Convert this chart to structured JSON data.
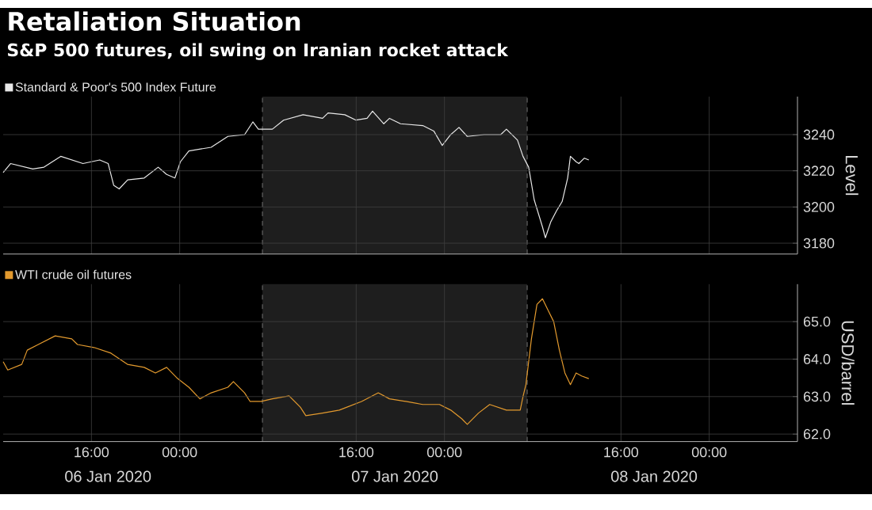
{
  "chart_data": [
    {
      "type": "line",
      "title": "Retaliation Situation",
      "subtitle": "S&P 500 futures, oil swing on Iranian rocket attack",
      "ylabel": "Level",
      "series": [
        {
          "name": "Standard & Poor's 500 Index Future",
          "color": "#e8e8e8",
          "x": [
            "2020-01-06T08:00",
            "2020-01-06T08:40",
            "2020-01-06T10:41",
            "2020-01-06T11:42",
            "2020-01-06T13:13",
            "2020-01-06T15:14",
            "2020-01-06T16:45",
            "2020-01-06T17:31",
            "2020-01-06T18:01",
            "2020-01-06T18:31",
            "2020-01-06T19:17",
            "2020-01-06T20:47",
            "2020-01-06T22:03",
            "2020-01-06T22:49",
            "2020-01-06T23:34",
            "2020-01-07T00:04",
            "2020-01-07T00:50",
            "2020-01-07T02:51",
            "2020-01-07T04:22",
            "2020-01-07T05:53",
            "2020-01-07T06:38",
            "2020-01-07T07:08",
            "2020-01-07T08:24",
            "2020-01-07T09:25",
            "2020-01-07T11:11",
            "2020-01-07T12:57",
            "2020-01-07T13:27",
            "2020-01-07T14:58",
            "2020-01-07T15:59",
            "2020-01-07T16:59",
            "2020-01-07T17:29",
            "2020-01-07T18:30",
            "2020-01-07T19:01",
            "2020-01-07T20:01",
            "2020-01-07T22:02",
            "2020-01-07T23:02",
            "2020-01-07T23:48",
            "2020-01-08T00:34",
            "2020-01-08T01:19",
            "2020-01-08T02:04",
            "2020-01-08T03:35",
            "2020-01-08T05:06",
            "2020-01-08T05:37",
            "2020-01-08T06:37",
            "2020-01-08T07:07",
            "2020-01-08T07:38",
            "2020-01-08T08:08",
            "2020-01-08T08:53",
            "2020-01-08T09:09",
            "2020-01-08T09:39",
            "2020-01-08T10:10",
            "2020-01-08T10:40",
            "2020-01-08T11:10",
            "2020-01-08T11:25",
            "2020-01-08T11:56",
            "2020-01-08T12:11",
            "2020-01-08T12:41",
            "2020-01-08T13:05"
          ],
          "values": [
            3219,
            3224,
            3221,
            3222,
            3228,
            3224,
            3226,
            3224,
            3212,
            3210,
            3215,
            3216,
            3222,
            3218,
            3216,
            3225,
            3231,
            3233,
            3239,
            3240,
            3247,
            3243,
            3243,
            3248,
            3251,
            3249,
            3252,
            3251,
            3248,
            3249,
            3253,
            3246,
            3249,
            3246,
            3245,
            3242,
            3234,
            3240,
            3244,
            3239,
            3240,
            3240,
            3243,
            3237,
            3228,
            3222,
            3204,
            3189,
            3183,
            3192,
            3198,
            3203,
            3216,
            3228,
            3225,
            3224,
            3227,
            3226
          ]
        }
      ],
      "xlim": [
        "2020-01-06T08:00",
        "2020-01-09T08:00"
      ],
      "xticks": [
        {
          "value": "2020-01-06T16:00",
          "label": null
        },
        {
          "value": "2020-01-07T00:00",
          "label": null
        },
        {
          "value": "2020-01-07T16:00",
          "label": null
        },
        {
          "value": "2020-01-08T00:00",
          "label": null
        },
        {
          "value": "2020-01-08T16:00",
          "label": null
        },
        {
          "value": "2020-01-09T00:00",
          "label": null
        }
      ],
      "ylim": [
        3174,
        3261
      ],
      "yticks": [
        3180,
        3200,
        3220,
        3240
      ],
      "tick_labels": "y",
      "bands": [
        {
          "axis": "x",
          "from": "2020-01-07T07:30",
          "to": "2020-01-08T07:30",
          "color": "#1e1e1e"
        }
      ],
      "ref_lines": [
        {
          "axis": "x",
          "value": "2020-01-07T07:30",
          "line_style": "dashed"
        },
        {
          "axis": "x",
          "value": "2020-01-08T07:30",
          "line_style": "dashed"
        }
      ],
      "grid": true,
      "legend": "top left"
    },
    {
      "type": "line",
      "ylabel": "USD/barrel",
      "series": [
        {
          "name": "WTI crude oil futures",
          "color": "#e39a2e",
          "x": [
            "2020-01-06T08:00",
            "2020-01-06T08:25",
            "2020-01-06T09:41",
            "2020-01-06T10:11",
            "2020-01-06T11:11",
            "2020-01-06T12:43",
            "2020-01-06T14:13",
            "2020-01-06T14:44",
            "2020-01-06T16:14",
            "2020-01-06T17:46",
            "2020-01-06T19:16",
            "2020-01-06T20:47",
            "2020-01-06T21:48",
            "2020-01-06T22:49",
            "2020-01-06T23:49",
            "2020-01-07T00:50",
            "2020-01-07T01:50",
            "2020-01-07T02:51",
            "2020-01-07T04:22",
            "2020-01-07T04:52",
            "2020-01-07T05:53",
            "2020-01-07T06:23",
            "2020-01-07T07:23",
            "2020-01-07T08:24",
            "2020-01-07T09:55",
            "2020-01-07T10:56",
            "2020-01-07T11:26",
            "2020-01-07T12:57",
            "2020-01-07T14:28",
            "2020-01-07T16:29",
            "2020-01-07T18:00",
            "2020-01-07T19:01",
            "2020-01-07T20:31",
            "2020-01-07T22:02",
            "2020-01-07T23:33",
            "2020-01-08T00:34",
            "2020-01-08T01:34",
            "2020-01-08T02:04",
            "2020-01-08T03:05",
            "2020-01-08T04:06",
            "2020-01-08T05:37",
            "2020-01-08T06:52",
            "2020-01-08T07:08",
            "2020-01-08T07:23",
            "2020-01-08T07:53",
            "2020-01-08T08:23",
            "2020-01-08T08:53",
            "2020-01-08T09:24",
            "2020-01-08T09:54",
            "2020-01-08T10:25",
            "2020-01-08T10:55",
            "2020-01-08T11:25",
            "2020-01-08T11:56",
            "2020-01-08T12:26",
            "2020-01-08T13:05"
          ],
          "values": [
            63.93,
            63.71,
            63.86,
            64.24,
            64.39,
            64.62,
            64.54,
            64.39,
            64.31,
            64.16,
            63.86,
            63.78,
            63.63,
            63.78,
            63.48,
            63.25,
            62.94,
            63.1,
            63.25,
            63.4,
            63.1,
            62.87,
            62.87,
            62.94,
            63.02,
            62.72,
            62.49,
            62.56,
            62.64,
            62.87,
            63.1,
            62.94,
            62.87,
            62.79,
            62.79,
            62.64,
            62.41,
            62.26,
            62.56,
            62.79,
            62.64,
            62.64,
            63.02,
            63.32,
            64.54,
            65.46,
            65.61,
            65.3,
            65.0,
            64.24,
            63.63,
            63.32,
            63.63,
            63.55,
            63.48
          ]
        }
      ],
      "xlim": [
        "2020-01-06T08:00",
        "2020-01-09T08:00"
      ],
      "xticks": [
        {
          "value": "2020-01-06T16:00",
          "label": "16:00"
        },
        {
          "value": "2020-01-07T00:00",
          "label": "00:00"
        },
        {
          "value": "2020-01-07T16:00",
          "label": "16:00"
        },
        {
          "value": "2020-01-08T00:00",
          "label": "00:00"
        },
        {
          "value": "2020-01-08T16:00",
          "label": "16:00"
        },
        {
          "value": "2020-01-09T00:00",
          "label": "00:00"
        }
      ],
      "ylim": [
        61.8,
        66.0
      ],
      "yticks": [
        {
          "value": 62,
          "label": "62.0"
        },
        {
          "value": 63,
          "label": "63.0"
        },
        {
          "value": 64,
          "label": "64.0"
        },
        {
          "value": 65,
          "label": "65.0"
        }
      ],
      "x2lim": [
        "2020-01-06T08:00",
        "2020-01-09T08:00"
      ],
      "x2ticks": [
        {
          "value": "2020-01-06T17:30",
          "label": "06 Jan 2020"
        },
        {
          "value": "2020-01-07T19:30",
          "label": "07 Jan 2020"
        },
        {
          "value": "2020-01-08T19:00",
          "label": "08 Jan 2020"
        }
      ],
      "bands": [
        {
          "axis": "x",
          "from": "2020-01-07T07:30",
          "to": "2020-01-08T07:30",
          "color": "#1e1e1e"
        }
      ],
      "ref_lines": [
        {
          "axis": "x",
          "value": "2020-01-07T07:30",
          "line_style": "dashed"
        },
        {
          "axis": "x",
          "value": "2020-01-08T07:30",
          "line_style": "dashed"
        }
      ],
      "grid": true,
      "legend": "top left"
    }
  ]
}
